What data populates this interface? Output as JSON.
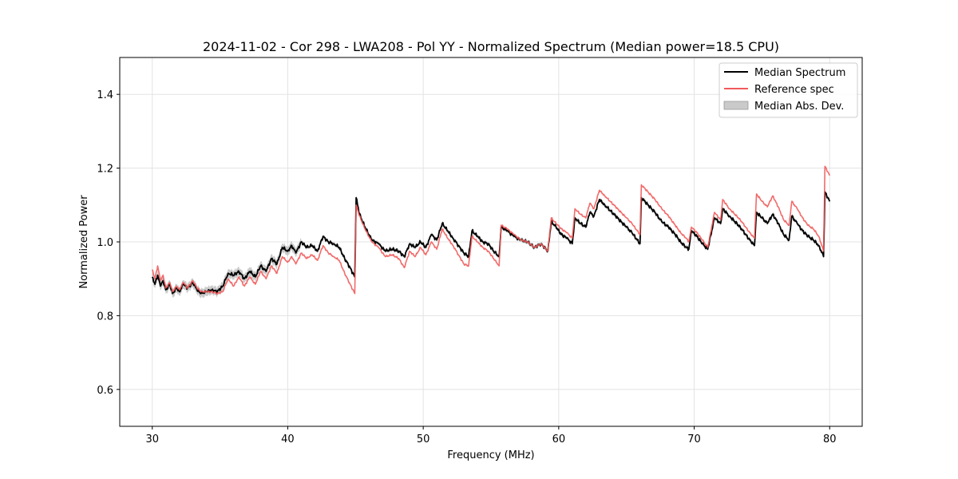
{
  "chart_data": {
    "type": "line",
    "title": "2024-11-02 - Cor 298 - LWA208 - Pol YY - Normalized Spectrum (Median power=18.5 CPU)",
    "xlabel": "Frequency (MHz)",
    "ylabel": "Normalized Power",
    "xlim": [
      27.6,
      82.4
    ],
    "ylim": [
      0.5,
      1.5
    ],
    "xticks": [
      30,
      40,
      50,
      60,
      70,
      80
    ],
    "yticks": [
      0.6,
      0.8,
      1.0,
      1.2,
      1.4
    ],
    "xtick_labels": [
      "30",
      "40",
      "50",
      "60",
      "70",
      "80"
    ],
    "ytick_labels": [
      "0.6",
      "0.8",
      "1.0",
      "1.2",
      "1.4"
    ],
    "grid": true,
    "legend_position": "top-right",
    "colors": {
      "median": "#000000",
      "reference": "#f15a5a",
      "mad": "#bdbdbd"
    },
    "series": [
      {
        "name": "Median Spectrum",
        "x": [
          30.0,
          30.2,
          30.4,
          30.6,
          30.8,
          31.0,
          31.3,
          31.5,
          31.8,
          32.0,
          32.3,
          32.6,
          33.0,
          33.3,
          33.6,
          34.0,
          34.4,
          34.8,
          35.2,
          35.6,
          36.0,
          36.4,
          36.8,
          37.2,
          37.6,
          38.0,
          38.4,
          38.8,
          39.2,
          39.6,
          40.0,
          40.3,
          40.6,
          41.0,
          41.4,
          41.8,
          42.2,
          42.6,
          43.0,
          43.4,
          43.8,
          44.2,
          44.6,
          44.95,
          45.05,
          45.3,
          45.7,
          46.2,
          46.7,
          47.2,
          47.7,
          48.2,
          48.6,
          49.0,
          49.4,
          49.8,
          50.2,
          50.6,
          51.0,
          51.4,
          51.8,
          52.2,
          52.6,
          53.0,
          53.35,
          53.6,
          54.0,
          54.4,
          54.8,
          55.2,
          55.6,
          55.75,
          56.2,
          56.7,
          57.2,
          57.7,
          58.2,
          58.7,
          59.2,
          59.45,
          59.8,
          60.2,
          60.6,
          61.0,
          61.2,
          61.6,
          62.0,
          62.3,
          62.6,
          63.0,
          63.4,
          63.8,
          64.2,
          64.6,
          65.0,
          65.4,
          65.8,
          66.0,
          66.1,
          66.6,
          67.1,
          67.6,
          68.1,
          68.6,
          69.0,
          69.4,
          69.6,
          69.8,
          70.2,
          70.6,
          71.0,
          71.5,
          71.95,
          72.1,
          72.6,
          73.0,
          73.4,
          73.8,
          74.2,
          74.45,
          74.6,
          75.0,
          75.4,
          75.8,
          76.2,
          76.6,
          77.0,
          77.2,
          77.6,
          78.0,
          78.4,
          78.8,
          79.2,
          79.55,
          79.65,
          80.0
        ],
        "y": [
          0.905,
          0.885,
          0.91,
          0.88,
          0.895,
          0.87,
          0.885,
          0.86,
          0.875,
          0.865,
          0.885,
          0.875,
          0.89,
          0.87,
          0.86,
          0.865,
          0.87,
          0.865,
          0.88,
          0.915,
          0.91,
          0.92,
          0.9,
          0.92,
          0.905,
          0.935,
          0.92,
          0.955,
          0.94,
          0.985,
          0.975,
          0.99,
          0.97,
          1.0,
          0.985,
          0.99,
          0.975,
          1.015,
          1.0,
          0.995,
          0.985,
          0.955,
          0.93,
          0.905,
          1.12,
          1.075,
          1.04,
          1.005,
          0.995,
          0.975,
          0.98,
          0.975,
          0.96,
          0.995,
          0.985,
          1.0,
          0.985,
          1.02,
          1.005,
          1.05,
          1.03,
          1.01,
          0.99,
          0.97,
          0.96,
          1.03,
          1.015,
          1.0,
          0.995,
          0.975,
          0.96,
          1.04,
          1.03,
          1.015,
          1.005,
          1.0,
          0.985,
          0.995,
          0.975,
          1.055,
          1.04,
          1.02,
          1.01,
          0.995,
          1.065,
          1.05,
          1.04,
          1.08,
          1.07,
          1.115,
          1.1,
          1.085,
          1.07,
          1.055,
          1.04,
          1.025,
          1.005,
          0.995,
          1.12,
          1.1,
          1.08,
          1.055,
          1.04,
          1.02,
          1.0,
          0.985,
          0.98,
          1.03,
          1.015,
          0.995,
          0.98,
          1.065,
          1.05,
          1.09,
          1.07,
          1.055,
          1.04,
          1.02,
          1.0,
          0.99,
          1.08,
          1.065,
          1.05,
          1.075,
          1.05,
          1.02,
          1.005,
          1.07,
          1.05,
          1.03,
          1.015,
          1.005,
          0.99,
          0.96,
          1.135,
          1.11
        ]
      },
      {
        "name": "Reference spec",
        "x": [
          30.0,
          30.2,
          30.4,
          30.6,
          30.8,
          31.0,
          31.3,
          31.5,
          31.8,
          32.0,
          32.3,
          32.6,
          33.0,
          33.3,
          33.6,
          34.0,
          34.4,
          34.8,
          35.2,
          35.6,
          36.0,
          36.4,
          36.8,
          37.2,
          37.6,
          38.0,
          38.4,
          38.8,
          39.2,
          39.6,
          40.0,
          40.3,
          40.6,
          41.0,
          41.4,
          41.8,
          42.2,
          42.6,
          43.0,
          43.4,
          43.8,
          44.2,
          44.6,
          44.95,
          45.05,
          45.3,
          45.7,
          46.2,
          46.7,
          47.2,
          47.7,
          48.2,
          48.6,
          49.0,
          49.4,
          49.8,
          50.2,
          50.6,
          51.0,
          51.4,
          51.8,
          52.2,
          52.6,
          53.0,
          53.35,
          53.6,
          54.0,
          54.4,
          54.8,
          55.2,
          55.6,
          55.75,
          56.2,
          56.7,
          57.2,
          57.7,
          58.2,
          58.7,
          59.2,
          59.45,
          59.8,
          60.2,
          60.6,
          61.0,
          61.2,
          61.6,
          62.0,
          62.3,
          62.6,
          63.0,
          63.4,
          63.8,
          64.2,
          64.6,
          65.0,
          65.4,
          65.8,
          66.0,
          66.1,
          66.6,
          67.1,
          67.6,
          68.1,
          68.6,
          69.0,
          69.4,
          69.6,
          69.8,
          70.2,
          70.6,
          71.0,
          71.5,
          71.95,
          72.1,
          72.6,
          73.0,
          73.4,
          73.8,
          74.2,
          74.45,
          74.6,
          75.0,
          75.4,
          75.8,
          76.2,
          76.6,
          77.0,
          77.2,
          77.6,
          78.0,
          78.4,
          78.8,
          79.2,
          79.55,
          79.65,
          80.0
        ],
        "y": [
          0.925,
          0.9,
          0.935,
          0.895,
          0.91,
          0.875,
          0.89,
          0.865,
          0.88,
          0.87,
          0.89,
          0.875,
          0.895,
          0.875,
          0.865,
          0.865,
          0.865,
          0.86,
          0.865,
          0.9,
          0.88,
          0.905,
          0.88,
          0.905,
          0.885,
          0.92,
          0.9,
          0.935,
          0.915,
          0.96,
          0.945,
          0.96,
          0.94,
          0.97,
          0.955,
          0.965,
          0.95,
          0.99,
          0.97,
          0.96,
          0.95,
          0.915,
          0.885,
          0.86,
          1.1,
          1.07,
          1.035,
          1.0,
          0.985,
          0.96,
          0.965,
          0.955,
          0.93,
          0.975,
          0.96,
          0.985,
          0.965,
          1.0,
          0.98,
          1.035,
          1.01,
          0.99,
          0.965,
          0.94,
          0.935,
          1.015,
          1.0,
          0.985,
          0.975,
          0.955,
          0.935,
          1.045,
          1.035,
          1.02,
          1.005,
          1.0,
          0.985,
          0.995,
          0.975,
          1.065,
          1.05,
          1.035,
          1.025,
          1.01,
          1.09,
          1.075,
          1.065,
          1.105,
          1.09,
          1.14,
          1.125,
          1.11,
          1.095,
          1.08,
          1.065,
          1.05,
          1.03,
          1.02,
          1.155,
          1.135,
          1.115,
          1.09,
          1.07,
          1.045,
          1.025,
          1.01,
          1.0,
          1.04,
          1.025,
          1.005,
          0.985,
          1.08,
          1.06,
          1.115,
          1.09,
          1.075,
          1.06,
          1.04,
          1.02,
          1.01,
          1.13,
          1.11,
          1.095,
          1.125,
          1.095,
          1.06,
          1.045,
          1.11,
          1.09,
          1.065,
          1.045,
          1.035,
          1.015,
          0.975,
          1.205,
          1.18
        ]
      },
      {
        "name": "Median Abs. Dev."
      }
    ]
  }
}
